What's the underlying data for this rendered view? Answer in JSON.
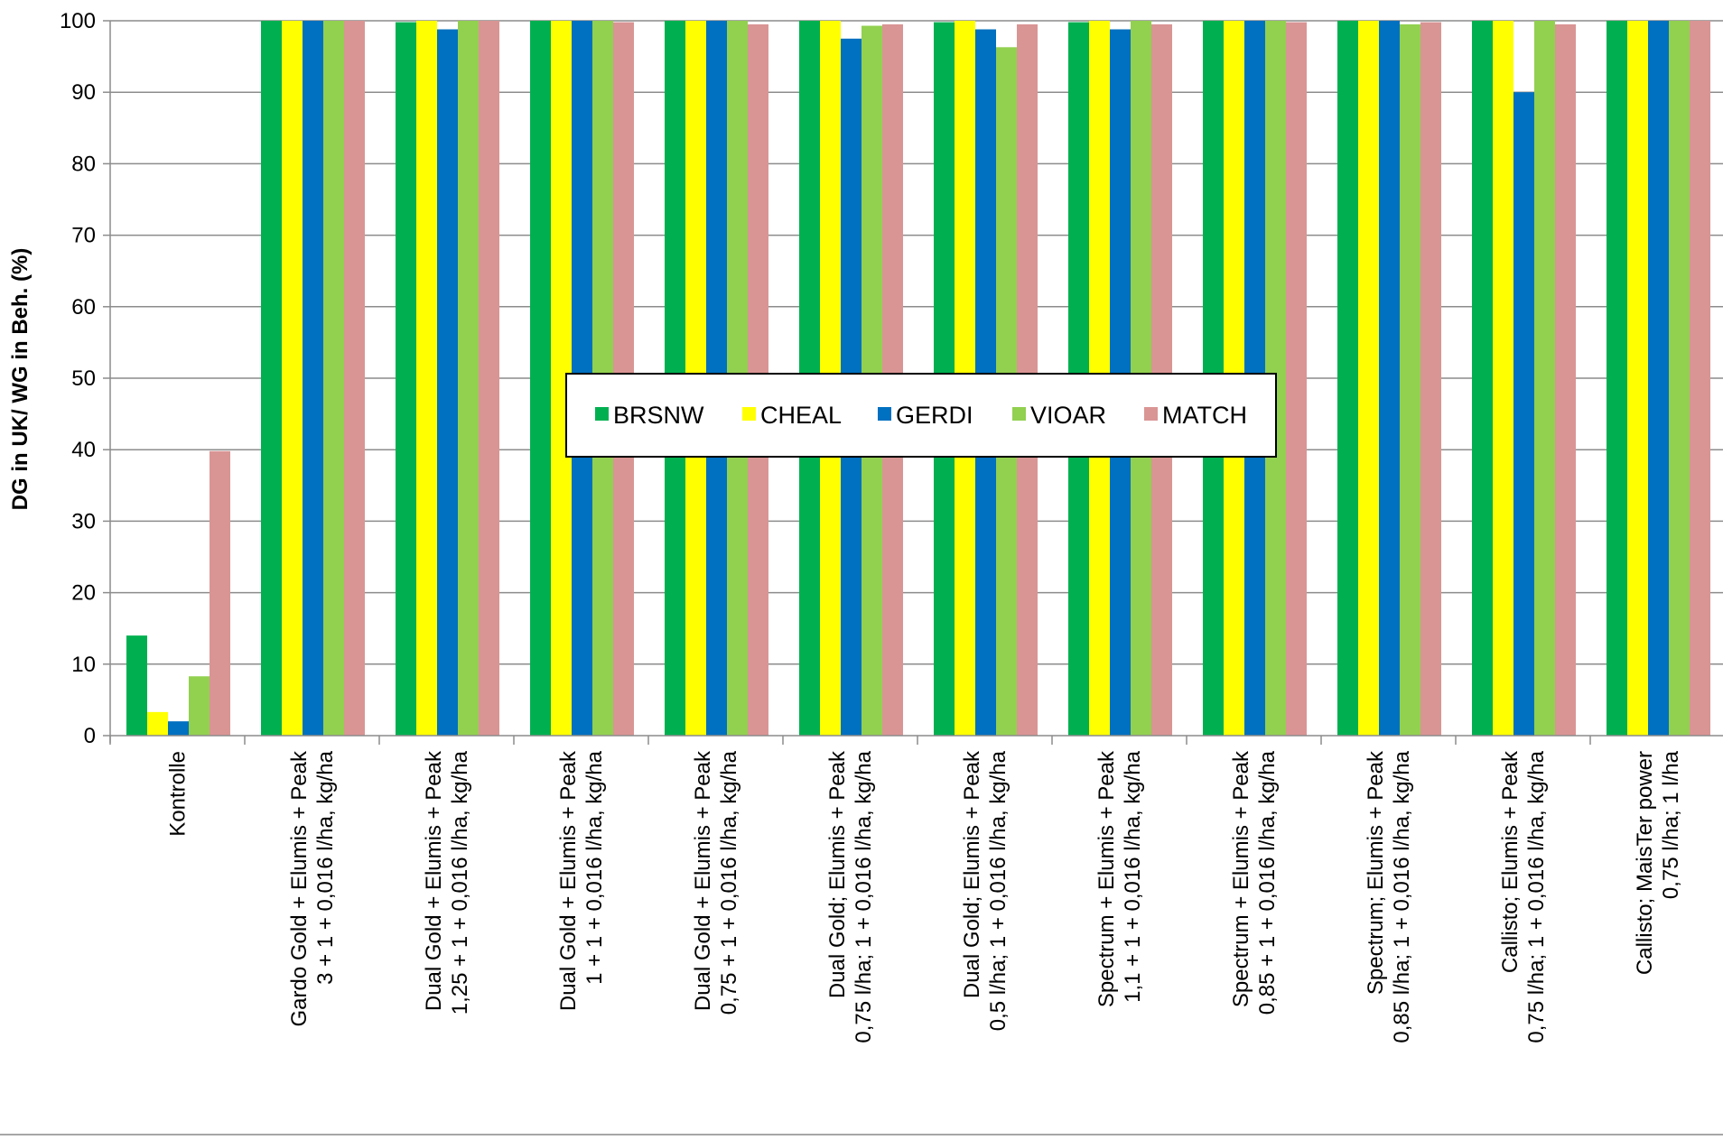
{
  "chart_data": {
    "type": "bar",
    "title": "",
    "xlabel": "",
    "ylabel": "DG in UK/ WG in Beh. (%)",
    "ylim": [
      0,
      100
    ],
    "yticks": [
      0,
      10,
      20,
      30,
      40,
      50,
      60,
      70,
      80,
      90,
      100
    ],
    "grid": "horizontal",
    "legend_position": "center",
    "categories": [
      [
        "Kontrolle"
      ],
      [
        "Gardo Gold + Elumis + Peak",
        "3 + 1 + 0,016 l/ha, kg/ha"
      ],
      [
        "Dual Gold + Elumis + Peak",
        "1,25 + 1 + 0,016 l/ha, kg/ha"
      ],
      [
        "Dual Gold + Elumis + Peak",
        "1 + 1 + 0,016 l/ha, kg/ha"
      ],
      [
        "Dual Gold + Elumis + Peak",
        "0,75 + 1 + 0,016 l/ha, kg/ha"
      ],
      [
        "Dual Gold; Elumis + Peak",
        "0,75 l/ha; 1 + 0,016 l/ha, kg/ha"
      ],
      [
        "Dual Gold; Elumis + Peak",
        "0,5 l/ha; 1 + 0,016 l/ha, kg/ha"
      ],
      [
        "Spectrum + Elumis + Peak",
        "1,1 + 1 + 0,016 l/ha, kg/ha"
      ],
      [
        "Spectrum + Elumis + Peak",
        "0,85 + 1 + 0,016 l/ha, kg/ha"
      ],
      [
        "Spectrum; Elumis + Peak",
        "0,85 l/ha; 1 + 0,016 l/ha, kg/ha"
      ],
      [
        "Callisto; Elumis + Peak",
        "0,75 l/ha; 1 + 0,016 l/ha, kg/ha"
      ],
      [
        "Callisto; MaisTer power",
        "0,75 l/ha; 1 l/ha"
      ]
    ],
    "series": [
      {
        "name": "BRSNW",
        "color": "#00b050",
        "values": [
          14,
          100,
          99.8,
          100,
          100,
          100,
          99.8,
          99.8,
          100,
          100,
          100,
          100
        ]
      },
      {
        "name": "CHEAL",
        "color": "#ffff00",
        "values": [
          3.3,
          100,
          100,
          100,
          100,
          100,
          100,
          100,
          100,
          100,
          100,
          100
        ]
      },
      {
        "name": "GERDI",
        "color": "#0070c0",
        "values": [
          2,
          100,
          98.8,
          100,
          100,
          97.5,
          98.8,
          98.8,
          100,
          100,
          90,
          100
        ]
      },
      {
        "name": "VIOAR",
        "color": "#92d050",
        "values": [
          8.3,
          100,
          100,
          100,
          100,
          99.3,
          96.3,
          100,
          100,
          99.5,
          100,
          100
        ]
      },
      {
        "name": "MATCH",
        "color": "#d99594",
        "values": [
          39.8,
          100,
          100,
          99.8,
          99.5,
          99.5,
          99.5,
          99.5,
          99.8,
          99.8,
          99.5,
          100
        ]
      }
    ]
  }
}
